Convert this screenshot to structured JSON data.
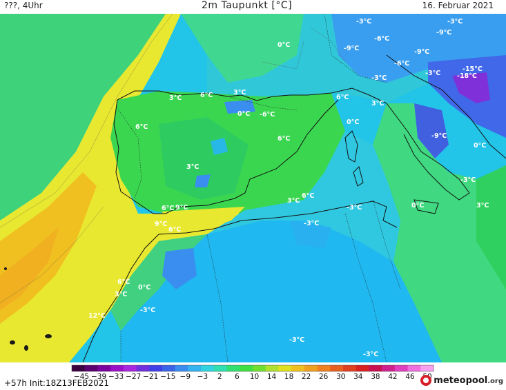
{
  "header": {
    "left": "???, 4Uhr",
    "title": "2m Taupunkt [°C]",
    "date": "16. Februar 2021"
  },
  "footer": {
    "run_info": "+57h  Init:18Z13FEB2021",
    "logo_text": "meteopool",
    "logo_suffix": ".org"
  },
  "color_scale": {
    "ticks": [
      "−45",
      "−39",
      "−33",
      "−27",
      "−21",
      "−15",
      "−9",
      "−3",
      "2",
      "6",
      "10",
      "14",
      "18",
      "22",
      "26",
      "30",
      "34",
      "38",
      "42",
      "46",
      "50"
    ],
    "colors": [
      "#3a0040",
      "#5a0070",
      "#7a00a0",
      "#9a10c8",
      "#a828e0",
      "#7030e0",
      "#4040e8",
      "#3a64e8",
      "#3a8cf0",
      "#34b4f0",
      "#30d4e0",
      "#30e0b0",
      "#30e070",
      "#40e040",
      "#70e030",
      "#b0e030",
      "#e0e020",
      "#f0c020",
      "#f0a020",
      "#f08020",
      "#e86020",
      "#e04020",
      "#d82020",
      "#c81050",
      "#d02090",
      "#e040c0",
      "#f070e0",
      "#f8a0f0"
    ]
  },
  "map_labels": [
    {
      "text": "-3°C"
    },
    {
      "text": "-3°C"
    },
    {
      "text": "-6°C"
    },
    {
      "text": "-9°C"
    },
    {
      "text": "0°C"
    },
    {
      "text": "-9°C"
    },
    {
      "text": "-9°C"
    },
    {
      "text": "-6°C"
    },
    {
      "text": "-3°C"
    },
    {
      "text": "-15°C"
    },
    {
      "text": "-18°C"
    },
    {
      "text": "-3°C"
    },
    {
      "text": "3°C"
    },
    {
      "text": "6°C"
    },
    {
      "text": "3°C"
    },
    {
      "text": "6°C"
    },
    {
      "text": "3°C"
    },
    {
      "text": "0°C"
    },
    {
      "text": "-6°C"
    },
    {
      "text": "6°C"
    },
    {
      "text": "0°C"
    },
    {
      "text": "6°C"
    },
    {
      "text": "-9°C"
    },
    {
      "text": "0°C"
    },
    {
      "text": "3°C"
    },
    {
      "text": "-3°C"
    },
    {
      "text": "3°C"
    },
    {
      "text": "6°C"
    },
    {
      "text": "9°C"
    },
    {
      "text": "3°C"
    },
    {
      "text": "6°C"
    },
    {
      "text": "-3°C"
    },
    {
      "text": "0°C"
    },
    {
      "text": "-3°C"
    },
    {
      "text": "9°C"
    },
    {
      "text": "6°C"
    },
    {
      "text": "6°C"
    },
    {
      "text": "3°C"
    },
    {
      "text": "0°C"
    },
    {
      "text": "-3°C"
    },
    {
      "text": "12°C"
    },
    {
      "text": "-3°C"
    },
    {
      "text": "-3°C"
    }
  ]
}
